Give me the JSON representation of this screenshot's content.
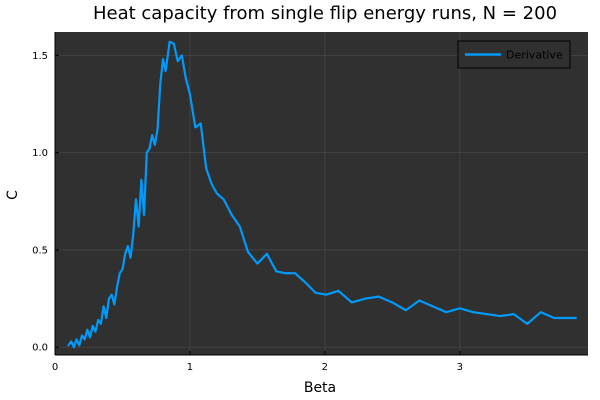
{
  "chart_data": {
    "type": "line",
    "title": "Heat capacity from single flip energy runs, N = 200",
    "xlabel": "Beta",
    "ylabel": "C",
    "xlim": [
      0,
      3.95
    ],
    "ylim": [
      -0.04,
      1.62
    ],
    "xticks": [
      0,
      1,
      2,
      3
    ],
    "xtick_labels": [
      "0",
      "1",
      "2",
      "3"
    ],
    "yticks": [
      0.0,
      0.5,
      1.0,
      1.5
    ],
    "ytick_labels": [
      "0.0",
      "0.5",
      "1.0",
      "1.5"
    ],
    "grid": true,
    "legend_position": "top-right",
    "colors": {
      "background": "#303030",
      "line": "#009AFA",
      "grid": "#464646",
      "text": "#000000",
      "legend_border": "#000000"
    },
    "series": [
      {
        "name": "Derivative",
        "x": [
          0.1,
          0.12,
          0.14,
          0.16,
          0.18,
          0.2,
          0.22,
          0.24,
          0.26,
          0.28,
          0.3,
          0.32,
          0.34,
          0.36,
          0.38,
          0.4,
          0.42,
          0.44,
          0.46,
          0.48,
          0.5,
          0.52,
          0.54,
          0.56,
          0.58,
          0.6,
          0.62,
          0.64,
          0.66,
          0.68,
          0.7,
          0.72,
          0.74,
          0.76,
          0.78,
          0.8,
          0.82,
          0.85,
          0.88,
          0.91,
          0.94,
          0.97,
          1.0,
          1.04,
          1.08,
          1.12,
          1.16,
          1.2,
          1.25,
          1.31,
          1.37,
          1.43,
          1.5,
          1.57,
          1.64,
          1.71,
          1.78,
          1.86,
          1.93,
          2.01,
          2.1,
          2.2,
          2.3,
          2.4,
          2.5,
          2.6,
          2.7,
          2.8,
          2.9,
          3.0,
          3.1,
          3.2,
          3.3,
          3.4,
          3.5,
          3.6,
          3.7,
          3.8,
          3.86
        ],
        "y": [
          0.01,
          0.03,
          0.0,
          0.04,
          0.01,
          0.06,
          0.04,
          0.09,
          0.05,
          0.11,
          0.08,
          0.14,
          0.12,
          0.21,
          0.15,
          0.25,
          0.27,
          0.22,
          0.31,
          0.38,
          0.4,
          0.48,
          0.52,
          0.46,
          0.58,
          0.76,
          0.62,
          0.86,
          0.68,
          1.0,
          1.02,
          1.09,
          1.04,
          1.12,
          1.35,
          1.48,
          1.42,
          1.57,
          1.56,
          1.47,
          1.5,
          1.38,
          1.3,
          1.13,
          1.15,
          0.92,
          0.84,
          0.79,
          0.76,
          0.68,
          0.62,
          0.49,
          0.43,
          0.48,
          0.39,
          0.38,
          0.38,
          0.33,
          0.28,
          0.27,
          0.29,
          0.23,
          0.25,
          0.26,
          0.23,
          0.19,
          0.24,
          0.21,
          0.18,
          0.2,
          0.18,
          0.17,
          0.16,
          0.17,
          0.12,
          0.18,
          0.15,
          0.15,
          0.15
        ]
      }
    ]
  }
}
